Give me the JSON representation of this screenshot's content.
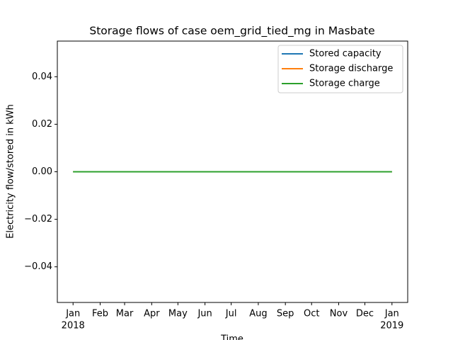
{
  "chart_data": {
    "type": "line",
    "title": "Storage flows of case oem_grid_tied_mg in Masbate",
    "xlabel": "Time",
    "ylabel": "Electricity flow/stored in kWh",
    "x": [
      "2018-01",
      "2018-02",
      "2018-03",
      "2018-04",
      "2018-05",
      "2018-06",
      "2018-07",
      "2018-08",
      "2018-09",
      "2018-10",
      "2018-11",
      "2018-12",
      "2019-01"
    ],
    "series": [
      {
        "name": "Stored capacity",
        "color": "#1f77b4",
        "values": [
          0,
          0,
          0,
          0,
          0,
          0,
          0,
          0,
          0,
          0,
          0,
          0,
          0
        ]
      },
      {
        "name": "Storage discharge",
        "color": "#ff7f0e",
        "values": [
          0,
          0,
          0,
          0,
          0,
          0,
          0,
          0,
          0,
          0,
          0,
          0,
          0
        ]
      },
      {
        "name": "Storage charge",
        "color": "#2ca02c",
        "values": [
          0,
          0,
          0,
          0,
          0,
          0,
          0,
          0,
          0,
          0,
          0,
          0,
          0
        ]
      }
    ],
    "xlim": [
      "2017-12-14",
      "2019-01-19"
    ],
    "xticks": [
      {
        "value": "2018-01",
        "label": "Jan",
        "sublabel": "2018"
      },
      {
        "value": "2018-02",
        "label": "Feb"
      },
      {
        "value": "2018-03",
        "label": "Mar"
      },
      {
        "value": "2018-04",
        "label": "Apr"
      },
      {
        "value": "2018-05",
        "label": "May"
      },
      {
        "value": "2018-06",
        "label": "Jun"
      },
      {
        "value": "2018-07",
        "label": "Jul"
      },
      {
        "value": "2018-08",
        "label": "Aug"
      },
      {
        "value": "2018-09",
        "label": "Sep"
      },
      {
        "value": "2018-10",
        "label": "Oct"
      },
      {
        "value": "2018-11",
        "label": "Nov"
      },
      {
        "value": "2018-12",
        "label": "Dec"
      },
      {
        "value": "2019-01",
        "label": "Jan",
        "sublabel": "2019"
      }
    ],
    "ylim": [
      -0.055,
      0.055
    ],
    "yticks": [
      {
        "value": -0.04,
        "label": "−0.04"
      },
      {
        "value": -0.02,
        "label": "−0.02"
      },
      {
        "value": 0,
        "label": "0.00"
      },
      0.02,
      0.04
    ],
    "legend": "upper right",
    "grid": false
  }
}
